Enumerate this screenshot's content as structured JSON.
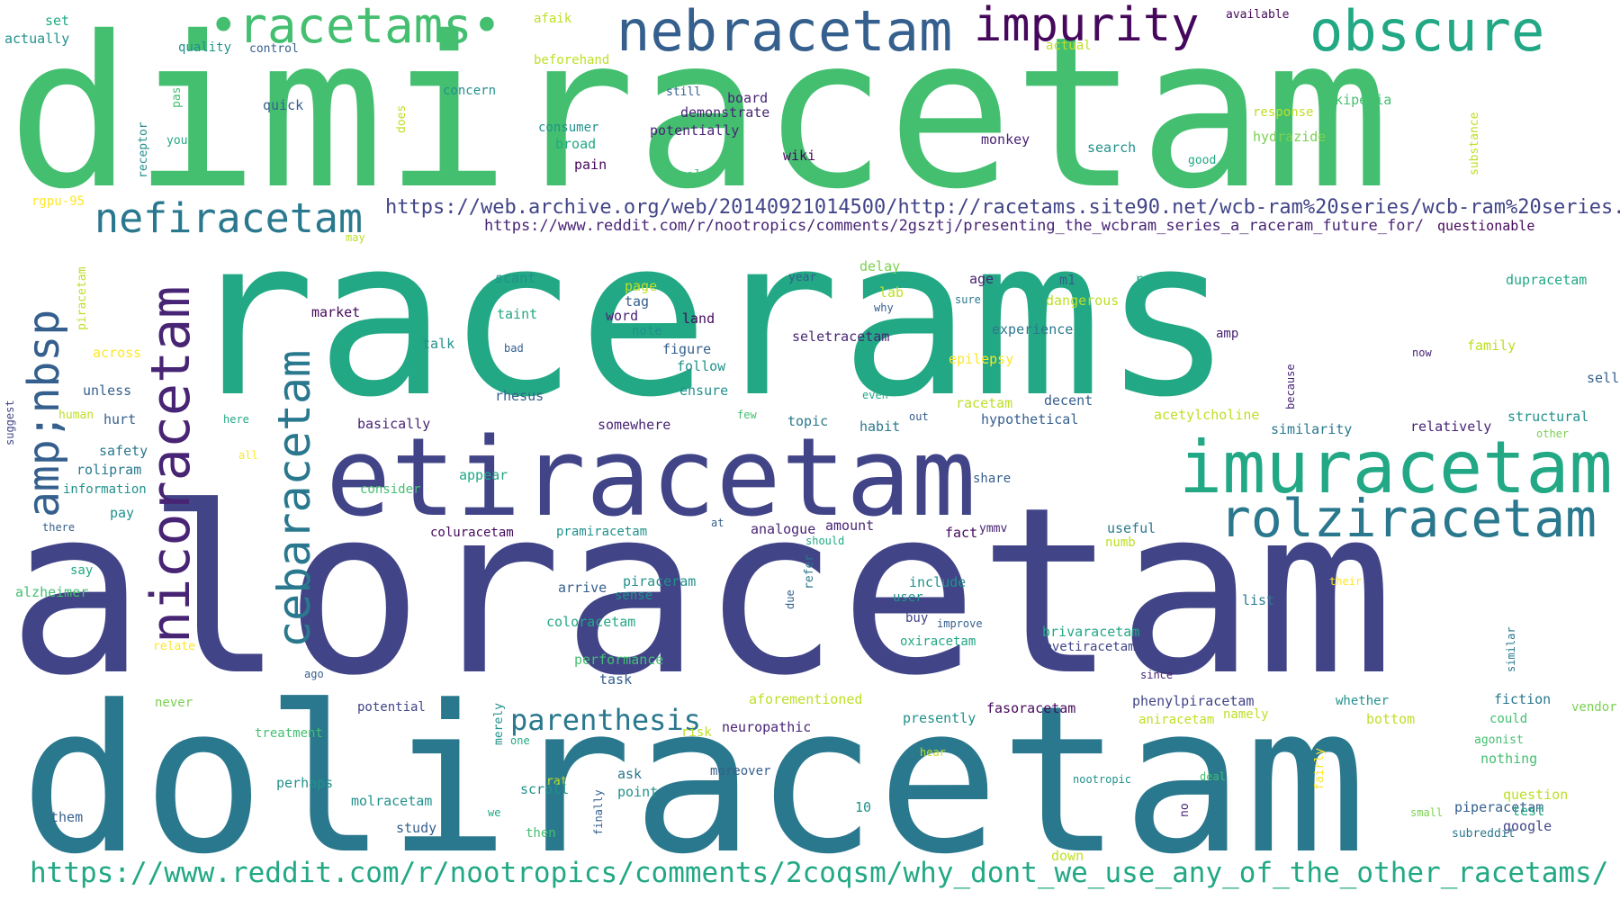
{
  "palette": {
    "dpurple": "#46085c",
    "purple": "#482475",
    "indigo": "#414487",
    "blue": "#355f8d",
    "steel": "#2a788e",
    "teal": "#21918c",
    "jade": "#22a884",
    "green": "#44bf70",
    "lgreen": "#7ad151",
    "lime": "#bddf26",
    "yellow": "#fde725"
  },
  "words": [
    {
      "text": "dimiracetam",
      "color": "green"
    },
    {
      "text": "racerams",
      "color": "jade"
    },
    {
      "text": "aloracetam",
      "color": "indigo"
    },
    {
      "text": "doliracetam",
      "color": "steel"
    },
    {
      "text": "etiracetam",
      "color": "indigo"
    },
    {
      "text": "imuracetam",
      "color": "jade"
    },
    {
      "text": "rolziracetam",
      "color": "steel"
    },
    {
      "text": "•racetams•",
      "color": "green"
    },
    {
      "text": "nebracetam",
      "color": "blue"
    },
    {
      "text": "impurity",
      "color": "dpurple"
    },
    {
      "text": "obscure",
      "color": "jade"
    },
    {
      "text": "nefiracetam",
      "color": "steel"
    },
    {
      "text": "https://web.archive.org/web/20140921014500/http://racetams.site90.net/wcb-ram%20series/wcb-ram%20series.htm",
      "color": "indigo"
    },
    {
      "text": "https://www.reddit.com/r/nootropics/comments/2gsztj/presenting_the_wcbram_series_a_raceram_future_for/",
      "color": "purple"
    },
    {
      "text": "https://www.reddit.com/r/nootropics/comments/2coqsm/why_dont_we_use_any_of_the_other_racetams/",
      "color": "jade"
    },
    {
      "text": "nicoracetam",
      "color": "purple"
    },
    {
      "text": "amp;nbsp",
      "color": "blue"
    },
    {
      "text": "cebaracetam",
      "color": "steel"
    },
    {
      "text": "parenthesis",
      "color": "steel"
    },
    {
      "text": "set",
      "color": "jade"
    },
    {
      "text": "actually",
      "color": "teal"
    },
    {
      "text": "afaik",
      "color": "lime"
    },
    {
      "text": "available",
      "color": "dpurple"
    },
    {
      "text": "actual",
      "color": "lime"
    },
    {
      "text": "quality",
      "color": "teal"
    },
    {
      "text": "control",
      "color": "blue"
    },
    {
      "text": "beforehand",
      "color": "lime"
    },
    {
      "text": "past",
      "color": "green"
    },
    {
      "text": "does",
      "color": "lime"
    },
    {
      "text": "quick",
      "color": "blue"
    },
    {
      "text": "concern",
      "color": "teal"
    },
    {
      "text": "still",
      "color": "blue"
    },
    {
      "text": "board",
      "color": "purple"
    },
    {
      "text": "demonstrate",
      "color": "purple"
    },
    {
      "text": "potentially",
      "color": "purple"
    },
    {
      "text": "consumer",
      "color": "teal"
    },
    {
      "text": "broad",
      "color": "jade"
    },
    {
      "text": "pain",
      "color": "dpurple"
    },
    {
      "text": "receptor",
      "color": "teal"
    },
    {
      "text": "you",
      "color": "jade"
    },
    {
      "text": "realm",
      "color": "green"
    },
    {
      "text": "wiki",
      "color": "dpurple"
    },
    {
      "text": "monkey",
      "color": "purple"
    },
    {
      "text": "search",
      "color": "teal"
    },
    {
      "text": "good",
      "color": "jade"
    },
    {
      "text": "wikipedia",
      "color": "green"
    },
    {
      "text": "response",
      "color": "lime"
    },
    {
      "text": "hydrazide",
      "color": "lgreen"
    },
    {
      "text": "substance",
      "color": "lime"
    },
    {
      "text": "rgpu-95",
      "color": "yellow"
    },
    {
      "text": "questionable",
      "color": "dpurple"
    },
    {
      "text": "may",
      "color": "lime"
    },
    {
      "text": "piracetam",
      "color": "lime"
    },
    {
      "text": "scant",
      "color": "teal"
    },
    {
      "text": "page",
      "color": "lime"
    },
    {
      "text": "tag",
      "color": "blue"
    },
    {
      "text": "market",
      "color": "dpurple"
    },
    {
      "text": "taint",
      "color": "jade"
    },
    {
      "text": "word",
      "color": "purple"
    },
    {
      "text": "land",
      "color": "dpurple"
    },
    {
      "text": "note",
      "color": "teal"
    },
    {
      "text": "talk",
      "color": "teal"
    },
    {
      "text": "bad",
      "color": "blue"
    },
    {
      "text": "figure",
      "color": "blue"
    },
    {
      "text": "follow",
      "color": "teal"
    },
    {
      "text": "year",
      "color": "blue"
    },
    {
      "text": "delay",
      "color": "lgreen"
    },
    {
      "text": "lab",
      "color": "lime"
    },
    {
      "text": "why",
      "color": "blue"
    },
    {
      "text": "age",
      "color": "purple"
    },
    {
      "text": "sure",
      "color": "steel"
    },
    {
      "text": "m1",
      "color": "blue"
    },
    {
      "text": "raise",
      "color": "jade"
    },
    {
      "text": "dangerous",
      "color": "lime"
    },
    {
      "text": "dupracetam",
      "color": "jade"
    },
    {
      "text": "seletracetam",
      "color": "purple"
    },
    {
      "text": "experience",
      "color": "steel"
    },
    {
      "text": "amp",
      "color": "purple"
    },
    {
      "text": "epilepsy",
      "color": "yellow"
    },
    {
      "text": "family",
      "color": "lime"
    },
    {
      "text": "now",
      "color": "purple"
    },
    {
      "text": "across",
      "color": "yellow"
    },
    {
      "text": "unless",
      "color": "blue"
    },
    {
      "text": "rhesus",
      "color": "blue"
    },
    {
      "text": "ensure",
      "color": "teal"
    },
    {
      "text": "even",
      "color": "jade"
    },
    {
      "text": "racetam",
      "color": "lime"
    },
    {
      "text": "decent",
      "color": "blue"
    },
    {
      "text": "because",
      "color": "purple"
    },
    {
      "text": "sell",
      "color": "blue"
    },
    {
      "text": "suggest",
      "color": "indigo"
    },
    {
      "text": "human",
      "color": "lime"
    },
    {
      "text": "hurt",
      "color": "blue"
    },
    {
      "text": "here",
      "color": "jade"
    },
    {
      "text": "basically",
      "color": "purple"
    },
    {
      "text": "somewhere",
      "color": "purple"
    },
    {
      "text": "few",
      "color": "green"
    },
    {
      "text": "topic",
      "color": "steel"
    },
    {
      "text": "out",
      "color": "blue"
    },
    {
      "text": "habit",
      "color": "steel"
    },
    {
      "text": "hypothetical",
      "color": "blue"
    },
    {
      "text": "acetylcholine",
      "color": "lime"
    },
    {
      "text": "similarity",
      "color": "steel"
    },
    {
      "text": "relatively",
      "color": "purple"
    },
    {
      "text": "structural",
      "color": "teal"
    },
    {
      "text": "other",
      "color": "lgreen"
    },
    {
      "text": "safety",
      "color": "steel"
    },
    {
      "text": "all",
      "color": "yellow"
    },
    {
      "text": "rolipram",
      "color": "steel"
    },
    {
      "text": "information",
      "color": "teal"
    },
    {
      "text": "consider",
      "color": "green"
    },
    {
      "text": "appear",
      "color": "jade"
    },
    {
      "text": "share",
      "color": "blue"
    },
    {
      "text": "pay",
      "color": "teal"
    },
    {
      "text": "there",
      "color": "blue"
    },
    {
      "text": "coluracetam",
      "color": "dpurple"
    },
    {
      "text": "pramiracetam",
      "color": "teal"
    },
    {
      "text": "at",
      "color": "blue"
    },
    {
      "text": "analogue",
      "color": "purple"
    },
    {
      "text": "amount",
      "color": "purple"
    },
    {
      "text": "should",
      "color": "jade"
    },
    {
      "text": "fact",
      "color": "dpurple"
    },
    {
      "text": "ymmv",
      "color": "purple"
    },
    {
      "text": "useful",
      "color": "steel"
    },
    {
      "text": "numb",
      "color": "lime"
    },
    {
      "text": "say",
      "color": "jade"
    },
    {
      "text": "alzheimer",
      "color": "green"
    },
    {
      "text": "arrive",
      "color": "blue"
    },
    {
      "text": "sense",
      "color": "teal"
    },
    {
      "text": "piraceram",
      "color": "teal"
    },
    {
      "text": "refer",
      "color": "steel"
    },
    {
      "text": "due",
      "color": "blue"
    },
    {
      "text": "include",
      "color": "teal"
    },
    {
      "text": "user",
      "color": "teal"
    },
    {
      "text": "buy",
      "color": "indigo"
    },
    {
      "text": "improve",
      "color": "blue"
    },
    {
      "text": "their",
      "color": "yellow"
    },
    {
      "text": "list",
      "color": "steel"
    },
    {
      "text": "relate",
      "color": "yellow"
    },
    {
      "text": "coloracetam",
      "color": "jade"
    },
    {
      "text": "oxiracetam",
      "color": "jade"
    },
    {
      "text": "brivaracetam",
      "color": "jade"
    },
    {
      "text": "levetiracetam",
      "color": "indigo"
    },
    {
      "text": "similar",
      "color": "steel"
    },
    {
      "text": "ago",
      "color": "blue"
    },
    {
      "text": "performance",
      "color": "green"
    },
    {
      "text": "task",
      "color": "blue"
    },
    {
      "text": "since",
      "color": "purple"
    },
    {
      "text": "never",
      "color": "lgreen"
    },
    {
      "text": "potential",
      "color": "indigo"
    },
    {
      "text": "aforementioned",
      "color": "lime"
    },
    {
      "text": "fasoracetam",
      "color": "dpurple"
    },
    {
      "text": "phenylpiracetam",
      "color": "indigo"
    },
    {
      "text": "fiction",
      "color": "steel"
    },
    {
      "text": "whether",
      "color": "teal"
    },
    {
      "text": "vendor",
      "color": "lgreen"
    },
    {
      "text": "treatment",
      "color": "green"
    },
    {
      "text": "merely",
      "color": "teal"
    },
    {
      "text": "one",
      "color": "jade"
    },
    {
      "text": "risk",
      "color": "lime"
    },
    {
      "text": "neuropathic",
      "color": "purple"
    },
    {
      "text": "presently",
      "color": "teal"
    },
    {
      "text": "aniracetam",
      "color": "lime"
    },
    {
      "text": "namely",
      "color": "lime"
    },
    {
      "text": "bottom",
      "color": "lime"
    },
    {
      "text": "could",
      "color": "green"
    },
    {
      "text": "perhaps",
      "color": "teal"
    },
    {
      "text": "molracetam",
      "color": "teal"
    },
    {
      "text": "ask",
      "color": "steel"
    },
    {
      "text": "moreover",
      "color": "blue"
    },
    {
      "text": "point",
      "color": "teal"
    },
    {
      "text": "hear",
      "color": "lime"
    },
    {
      "text": "agonist",
      "color": "green"
    },
    {
      "text": "nothing",
      "color": "green"
    },
    {
      "text": "fairly",
      "color": "yellow"
    },
    {
      "text": "no",
      "color": "purple"
    },
    {
      "text": "nootropic",
      "color": "teal"
    },
    {
      "text": "deal",
      "color": "green"
    },
    {
      "text": "them",
      "color": "blue"
    },
    {
      "text": "we",
      "color": "jade"
    },
    {
      "text": "rat",
      "color": "lime"
    },
    {
      "text": "scroll",
      "color": "teal"
    },
    {
      "text": "study",
      "color": "blue"
    },
    {
      "text": "then",
      "color": "green"
    },
    {
      "text": "finally",
      "color": "blue"
    },
    {
      "text": "10",
      "color": "teal"
    },
    {
      "text": "small",
      "color": "lgreen"
    },
    {
      "text": "piperacetam",
      "color": "blue"
    },
    {
      "text": "question",
      "color": "lime"
    },
    {
      "text": "test",
      "color": "jade"
    },
    {
      "text": "subreddit",
      "color": "steel"
    },
    {
      "text": "google",
      "color": "indigo"
    },
    {
      "text": "down",
      "color": "lime"
    }
  ]
}
